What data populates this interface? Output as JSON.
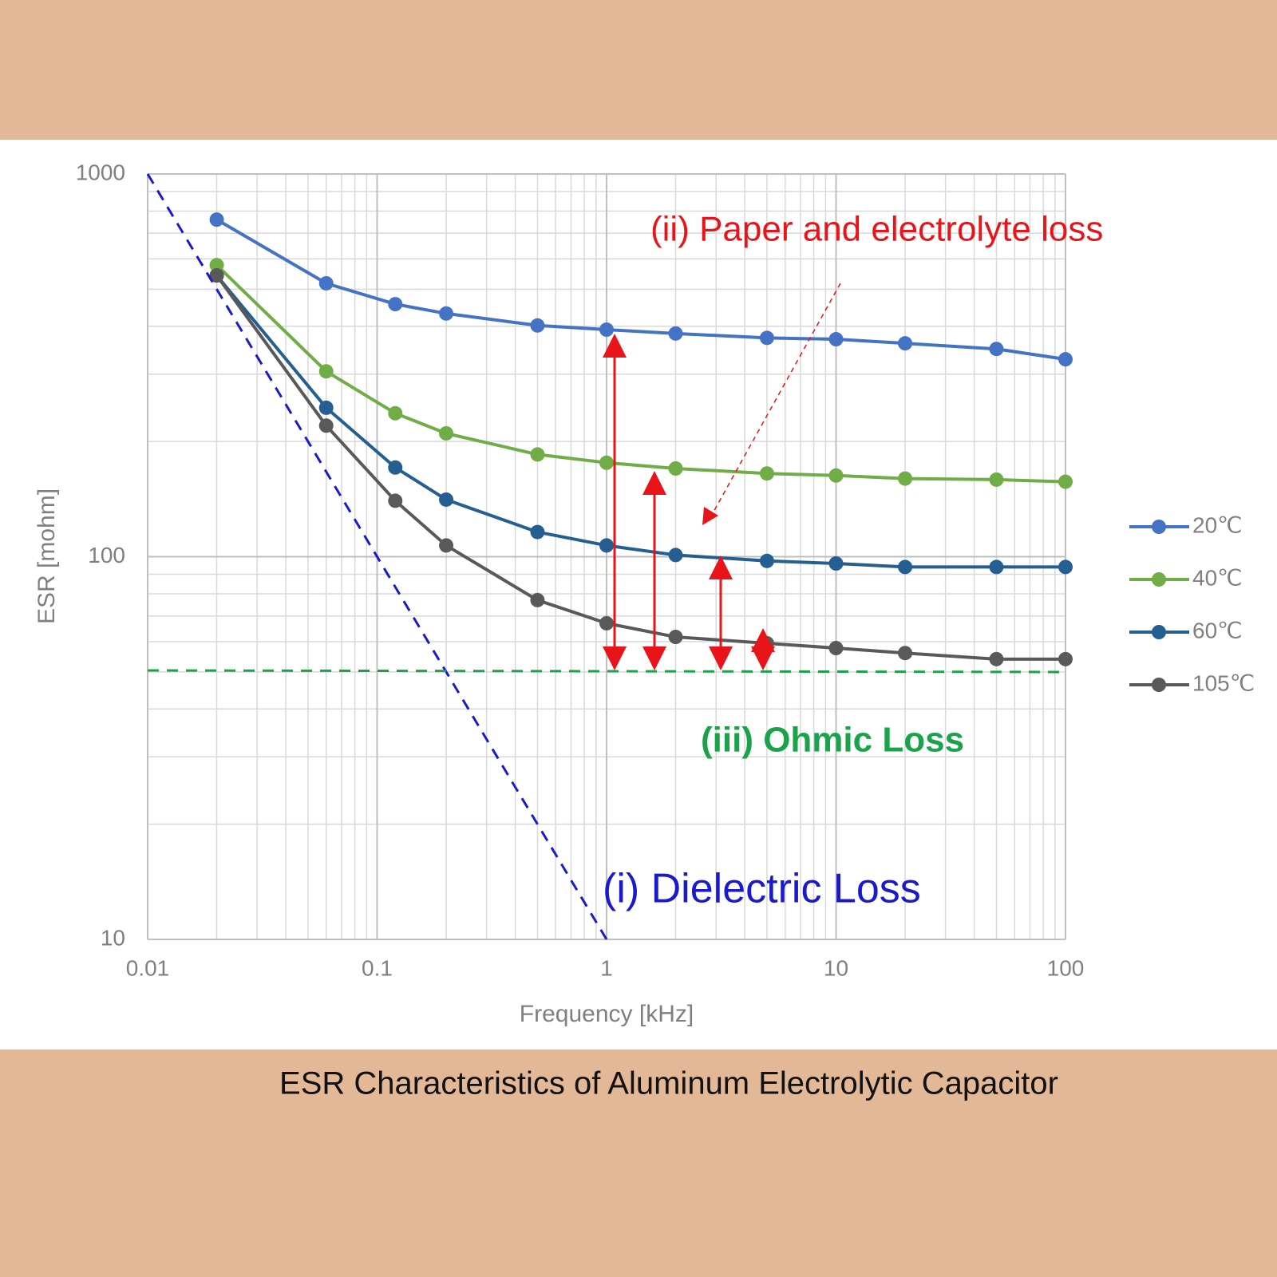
{
  "chart_data": {
    "type": "line",
    "title": "ESR Characteristics of Aluminum Electrolytic Capacitor",
    "x_label": "Frequency [kHz]",
    "y_label": "ESR [mohm]",
    "x": [
      0.02,
      0.06,
      0.12,
      0.2,
      0.5,
      1,
      2,
      5,
      10,
      20,
      50,
      100
    ],
    "series": [
      {
        "name": "20℃",
        "color": "#4472c4",
        "values": [
          760,
          518,
          457,
          432,
          402,
          392,
          383,
          373,
          370,
          361,
          349,
          328
        ]
      },
      {
        "name": "40℃",
        "color": "#70ad47",
        "values": [
          578,
          305,
          237,
          210,
          185,
          176,
          170,
          165,
          163,
          160,
          159,
          157
        ]
      },
      {
        "name": "60℃",
        "color": "#255e91",
        "values": [
          543,
          245,
          171,
          141,
          116,
          107,
          101,
          97.5,
          96,
          94,
          94,
          94
        ]
      },
      {
        "name": "105℃",
        "color": "#595959",
        "values": [
          543,
          220,
          140,
          107,
          77,
          67,
          61.7,
          59.4,
          57.7,
          56,
          54,
          54
        ]
      }
    ],
    "xlim": [
      0.01,
      100
    ],
    "ylim": [
      10,
      1000
    ],
    "xticks": [
      0.01,
      0.1,
      1,
      10,
      100
    ],
    "yticks": [
      10,
      100,
      1000
    ],
    "log_x": true,
    "log_y": true,
    "grid": true,
    "minor_grid": true,
    "legend": "right",
    "annotations": [
      "(ii) Paper and electrolyte loss",
      "(iii) Ohmic Loss",
      "(i) Dielectric Loss"
    ]
  }
}
